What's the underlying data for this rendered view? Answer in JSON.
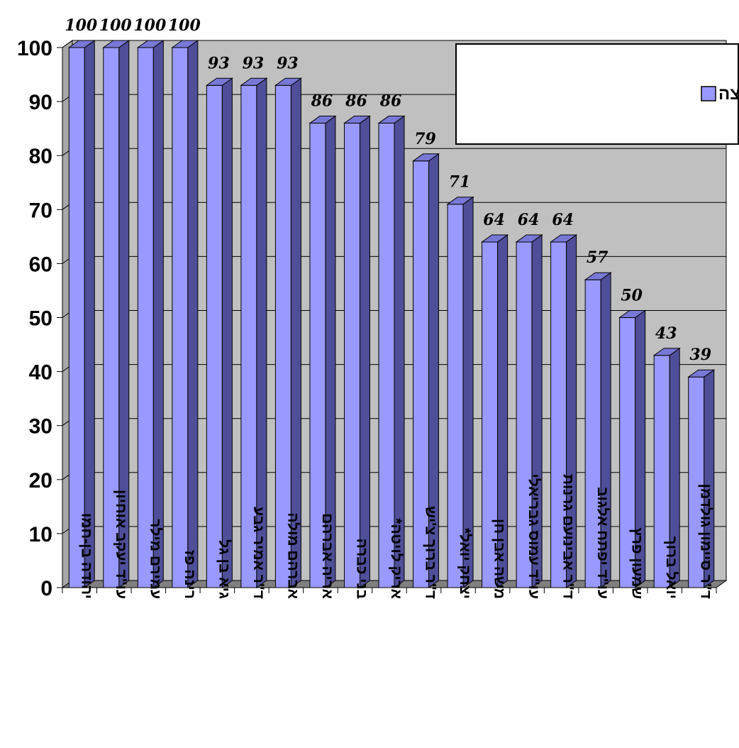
{
  "chart_data": {
    "type": "bar",
    "categories": [
      "יהודה בן-חמו",
      "עו\"ד יעקב אוחיון",
      "עמירם מילר",
      "רינה פז",
      "גיא בן גל",
      "ד\"ר אמיר גבע",
      "אברהם מולה",
      "אריה אברהם",
      "בני כברה",
      "אריק לויטה*",
      "ד\"ר ברוך צ'יש",
      "יצחק יואל*",
      "משה אבן חן",
      "עו\"ד עמוס גבריאלי",
      "ד\"ר אבינועם גרנות",
      "עו\"ד יפתח אלגוב",
      "שמעון פרץ",
      "יואל ברוך",
      "ד\"ר סיימון גולדמן"
    ],
    "series": [
      {
        "name": "אחוז נוכחות חבר המועצה",
        "values": [
          100,
          100,
          100,
          100,
          93,
          93,
          93,
          86,
          86,
          86,
          79,
          71,
          64,
          64,
          64,
          57,
          50,
          43,
          39
        ]
      }
    ],
    "data_labels": [
      "100",
      "100",
      "100",
      "100",
      "93",
      "93",
      "93",
      "86",
      "86",
      "86",
      "79",
      "71",
      "64",
      "64",
      "64",
      "57",
      "50",
      "43",
      "39"
    ],
    "yticks": [
      "0",
      "10",
      "20",
      "30",
      "40",
      "50",
      "60",
      "70",
      "80",
      "90",
      "100"
    ],
    "ylim": [
      0,
      100
    ],
    "grid": true,
    "legend_position": "top-right",
    "title": "",
    "xlabel": "",
    "ylabel": "",
    "colors": {
      "bar_front": "#9999ff",
      "bar_side": "#4e4e99",
      "bar_top": "#7878d6",
      "wall": "#c0c0c0",
      "floor": "#808080",
      "gridline": "#000000"
    }
  }
}
